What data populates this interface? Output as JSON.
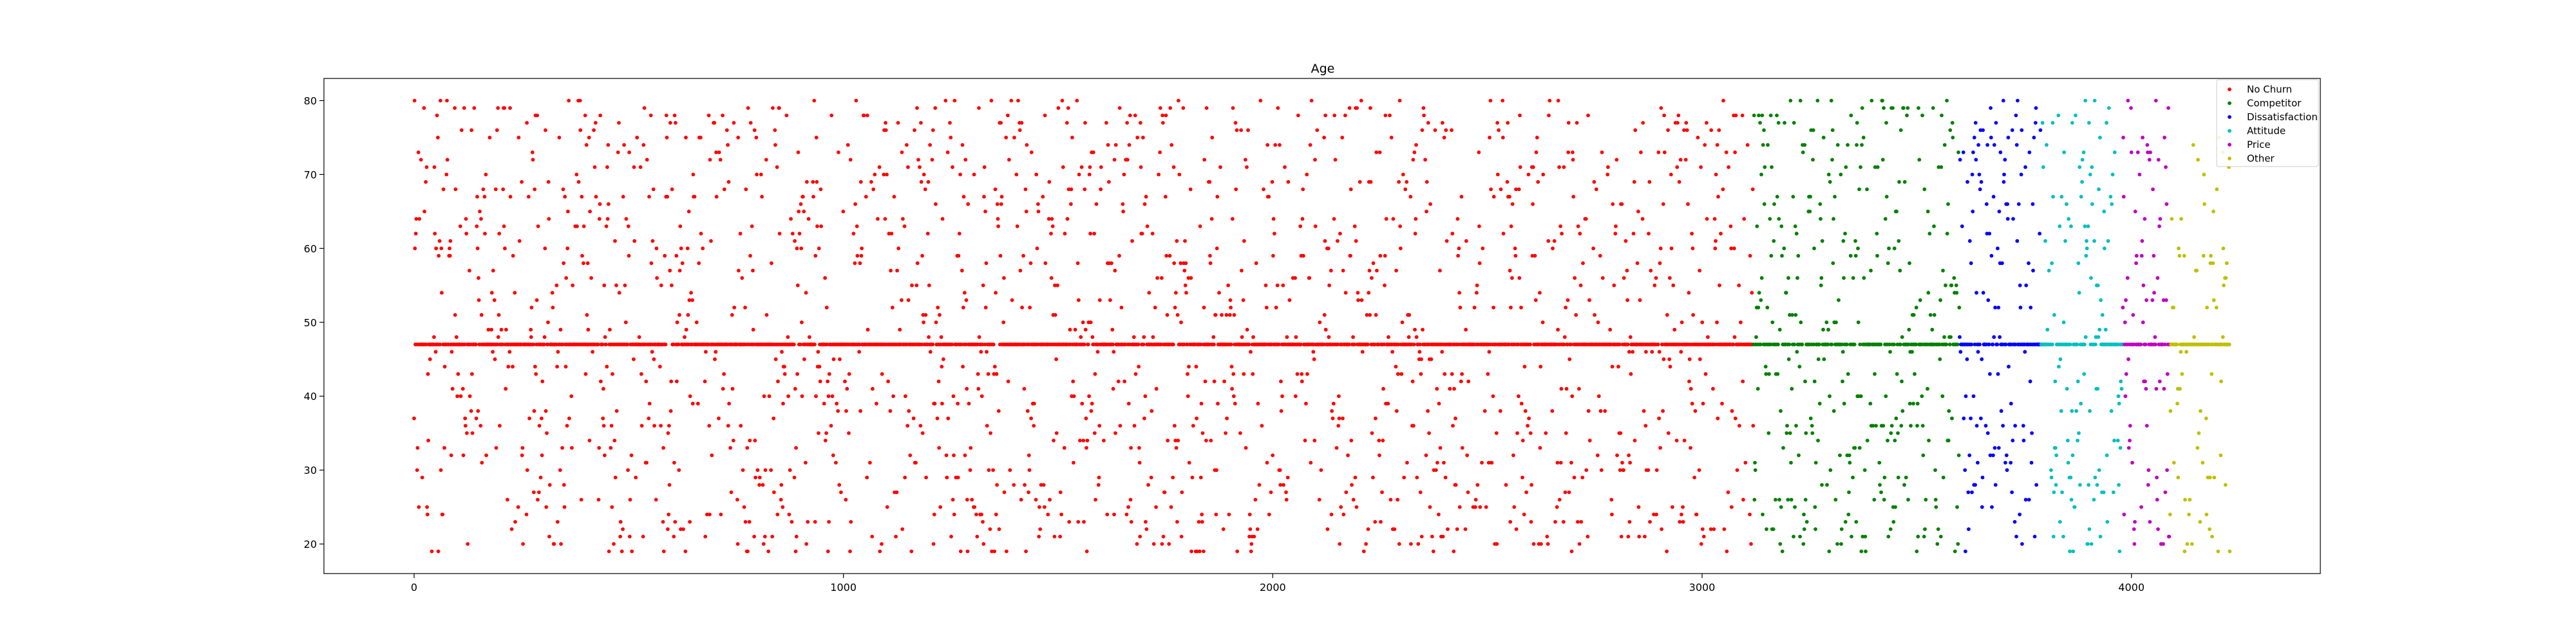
{
  "chart_data": {
    "type": "scatter",
    "title": "Age",
    "xlabel": "",
    "ylabel": "",
    "xlim": [
      -210,
      4440
    ],
    "ylim": [
      16,
      83
    ],
    "xticks": [
      0,
      1000,
      2000,
      3000,
      4000
    ],
    "yticks": [
      20,
      30,
      40,
      50,
      60,
      70,
      80
    ],
    "legend_position": "top-right",
    "grid": false,
    "series": [
      {
        "name": "No Churn",
        "color": "#ff0000",
        "x_range": [
          0,
          3120
        ],
        "count": 3100,
        "baseline": 47,
        "baseline_fraction": 0.45
      },
      {
        "name": "Competitor",
        "color": "#008000",
        "x_range": [
          3120,
          3600
        ],
        "count": 480,
        "baseline": 47,
        "baseline_fraction": 0.3
      },
      {
        "name": "Dissatisfaction",
        "color": "#0000ff",
        "x_range": [
          3600,
          3790
        ],
        "count": 200,
        "baseline": 47,
        "baseline_fraction": 0.35
      },
      {
        "name": "Attitude",
        "color": "#00bfbf",
        "x_range": [
          3790,
          3980
        ],
        "count": 200,
        "baseline": 47,
        "baseline_fraction": 0.35
      },
      {
        "name": "Price",
        "color": "#bf00bf",
        "x_range": [
          3980,
          4090
        ],
        "count": 110,
        "baseline": 47,
        "baseline_fraction": 0.35
      },
      {
        "name": "Other",
        "color": "#bfbf00",
        "x_range": [
          4090,
          4230
        ],
        "count": 140,
        "baseline": 47,
        "baseline_fraction": 0.4
      }
    ]
  }
}
